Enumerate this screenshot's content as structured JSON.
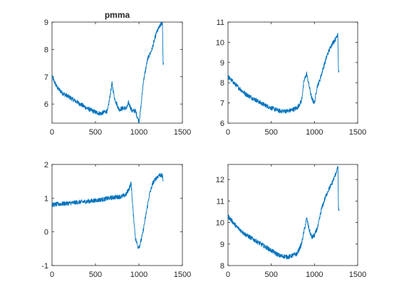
{
  "colors": {
    "line": "#0072BD",
    "axes": "#262626",
    "background": "#ffffff"
  },
  "chart_data": [
    {
      "type": "line",
      "title": "pmma",
      "xlabel": "",
      "ylabel": "",
      "xlim": [
        0,
        1500
      ],
      "ylim": [
        5.3,
        9
      ],
      "xticks": [
        0,
        500,
        1000,
        1500
      ],
      "yticks": [
        6,
        7,
        8,
        9
      ],
      "grid": false,
      "x": [
        0,
        60,
        120,
        200,
        300,
        400,
        500,
        560,
        640,
        690,
        720,
        770,
        820,
        860,
        880,
        920,
        960,
        1000,
        1020,
        1050,
        1100,
        1150,
        1200,
        1240,
        1270,
        1278,
        1285
      ],
      "values": [
        7.0,
        6.6,
        6.4,
        6.25,
        6.05,
        5.85,
        5.7,
        5.65,
        5.75,
        6.75,
        6.2,
        5.8,
        5.85,
        5.85,
        6.05,
        5.75,
        5.75,
        5.35,
        5.8,
        6.8,
        7.65,
        8.0,
        8.6,
        8.85,
        9.0,
        7.5,
        7.5
      ]
    },
    {
      "type": "line",
      "title": "",
      "xlabel": "",
      "ylabel": "",
      "xlim": [
        0,
        1500
      ],
      "ylim": [
        6,
        11
      ],
      "xticks": [
        0,
        500,
        1000,
        1500
      ],
      "yticks": [
        6,
        7,
        8,
        9,
        10,
        11
      ],
      "grid": false,
      "x": [
        0,
        100,
        200,
        300,
        400,
        500,
        600,
        700,
        800,
        850,
        880,
        910,
        940,
        970,
        1000,
        1030,
        1060,
        1100,
        1150,
        1200,
        1250,
        1270,
        1278,
        1285
      ],
      "values": [
        8.3,
        7.85,
        7.45,
        7.2,
        6.95,
        6.75,
        6.6,
        6.6,
        6.75,
        7.1,
        8.1,
        8.45,
        7.8,
        7.2,
        7.0,
        7.8,
        8.1,
        8.7,
        9.4,
        9.9,
        10.2,
        10.45,
        8.6,
        8.6
      ]
    },
    {
      "type": "line",
      "title": "",
      "xlabel": "",
      "ylabel": "",
      "xlim": [
        0,
        1500
      ],
      "ylim": [
        -1,
        2
      ],
      "xticks": [
        0,
        500,
        1000,
        1500
      ],
      "yticks": [
        -1,
        0,
        1,
        2
      ],
      "grid": false,
      "x": [
        0,
        100,
        200,
        300,
        400,
        500,
        600,
        700,
        800,
        850,
        890,
        910,
        930,
        960,
        990,
        1010,
        1040,
        1080,
        1120,
        1160,
        1200,
        1240,
        1270,
        1280
      ],
      "values": [
        0.8,
        0.83,
        0.85,
        0.88,
        0.9,
        0.93,
        0.97,
        1.02,
        1.05,
        1.1,
        1.3,
        1.45,
        0.7,
        -0.2,
        -0.45,
        -0.4,
        -0.1,
        0.5,
        1.1,
        1.45,
        1.6,
        1.7,
        1.65,
        1.5
      ]
    },
    {
      "type": "line",
      "title": "",
      "xlabel": "",
      "ylabel": "",
      "xlim": [
        0,
        1500
      ],
      "ylim": [
        8,
        12.7
      ],
      "xticks": [
        0,
        500,
        1000,
        1500
      ],
      "yticks": [
        8,
        9,
        10,
        11,
        12
      ],
      "grid": false,
      "x": [
        0,
        100,
        200,
        300,
        400,
        500,
        600,
        700,
        800,
        850,
        880,
        910,
        940,
        970,
        1000,
        1040,
        1080,
        1120,
        1160,
        1200,
        1240,
        1265,
        1272,
        1278,
        1285
      ],
      "values": [
        10.3,
        9.8,
        9.45,
        9.2,
        8.95,
        8.7,
        8.45,
        8.4,
        8.55,
        9.0,
        9.6,
        10.2,
        9.65,
        9.3,
        9.4,
        9.8,
        10.6,
        11.1,
        11.5,
        11.8,
        12.2,
        12.5,
        12.6,
        10.6,
        10.6
      ]
    }
  ]
}
